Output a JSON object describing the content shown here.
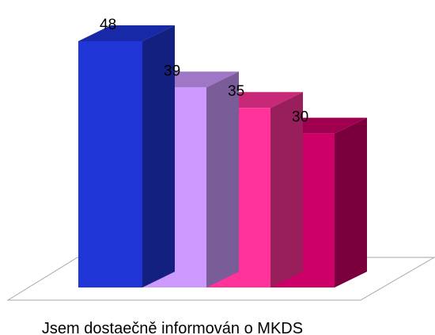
{
  "chart_data": {
    "type": "bar",
    "style": "3d-column",
    "categories": [
      "Jsem dostaečně informován o MKDS"
    ],
    "series": [
      {
        "values": [
          48
        ],
        "color": "#1f35d6"
      },
      {
        "values": [
          39
        ],
        "color": "#cc99ff"
      },
      {
        "values": [
          35
        ],
        "color": "#ff3399"
      },
      {
        "values": [
          30
        ],
        "color": "#cc0066"
      }
    ],
    "data_labels": [
      "48",
      "39",
      "35",
      "30"
    ],
    "xlabel": "Jsem dostaečně informován o MKDS",
    "ylim": [
      0,
      50
    ],
    "grid": false,
    "legend": "none"
  }
}
